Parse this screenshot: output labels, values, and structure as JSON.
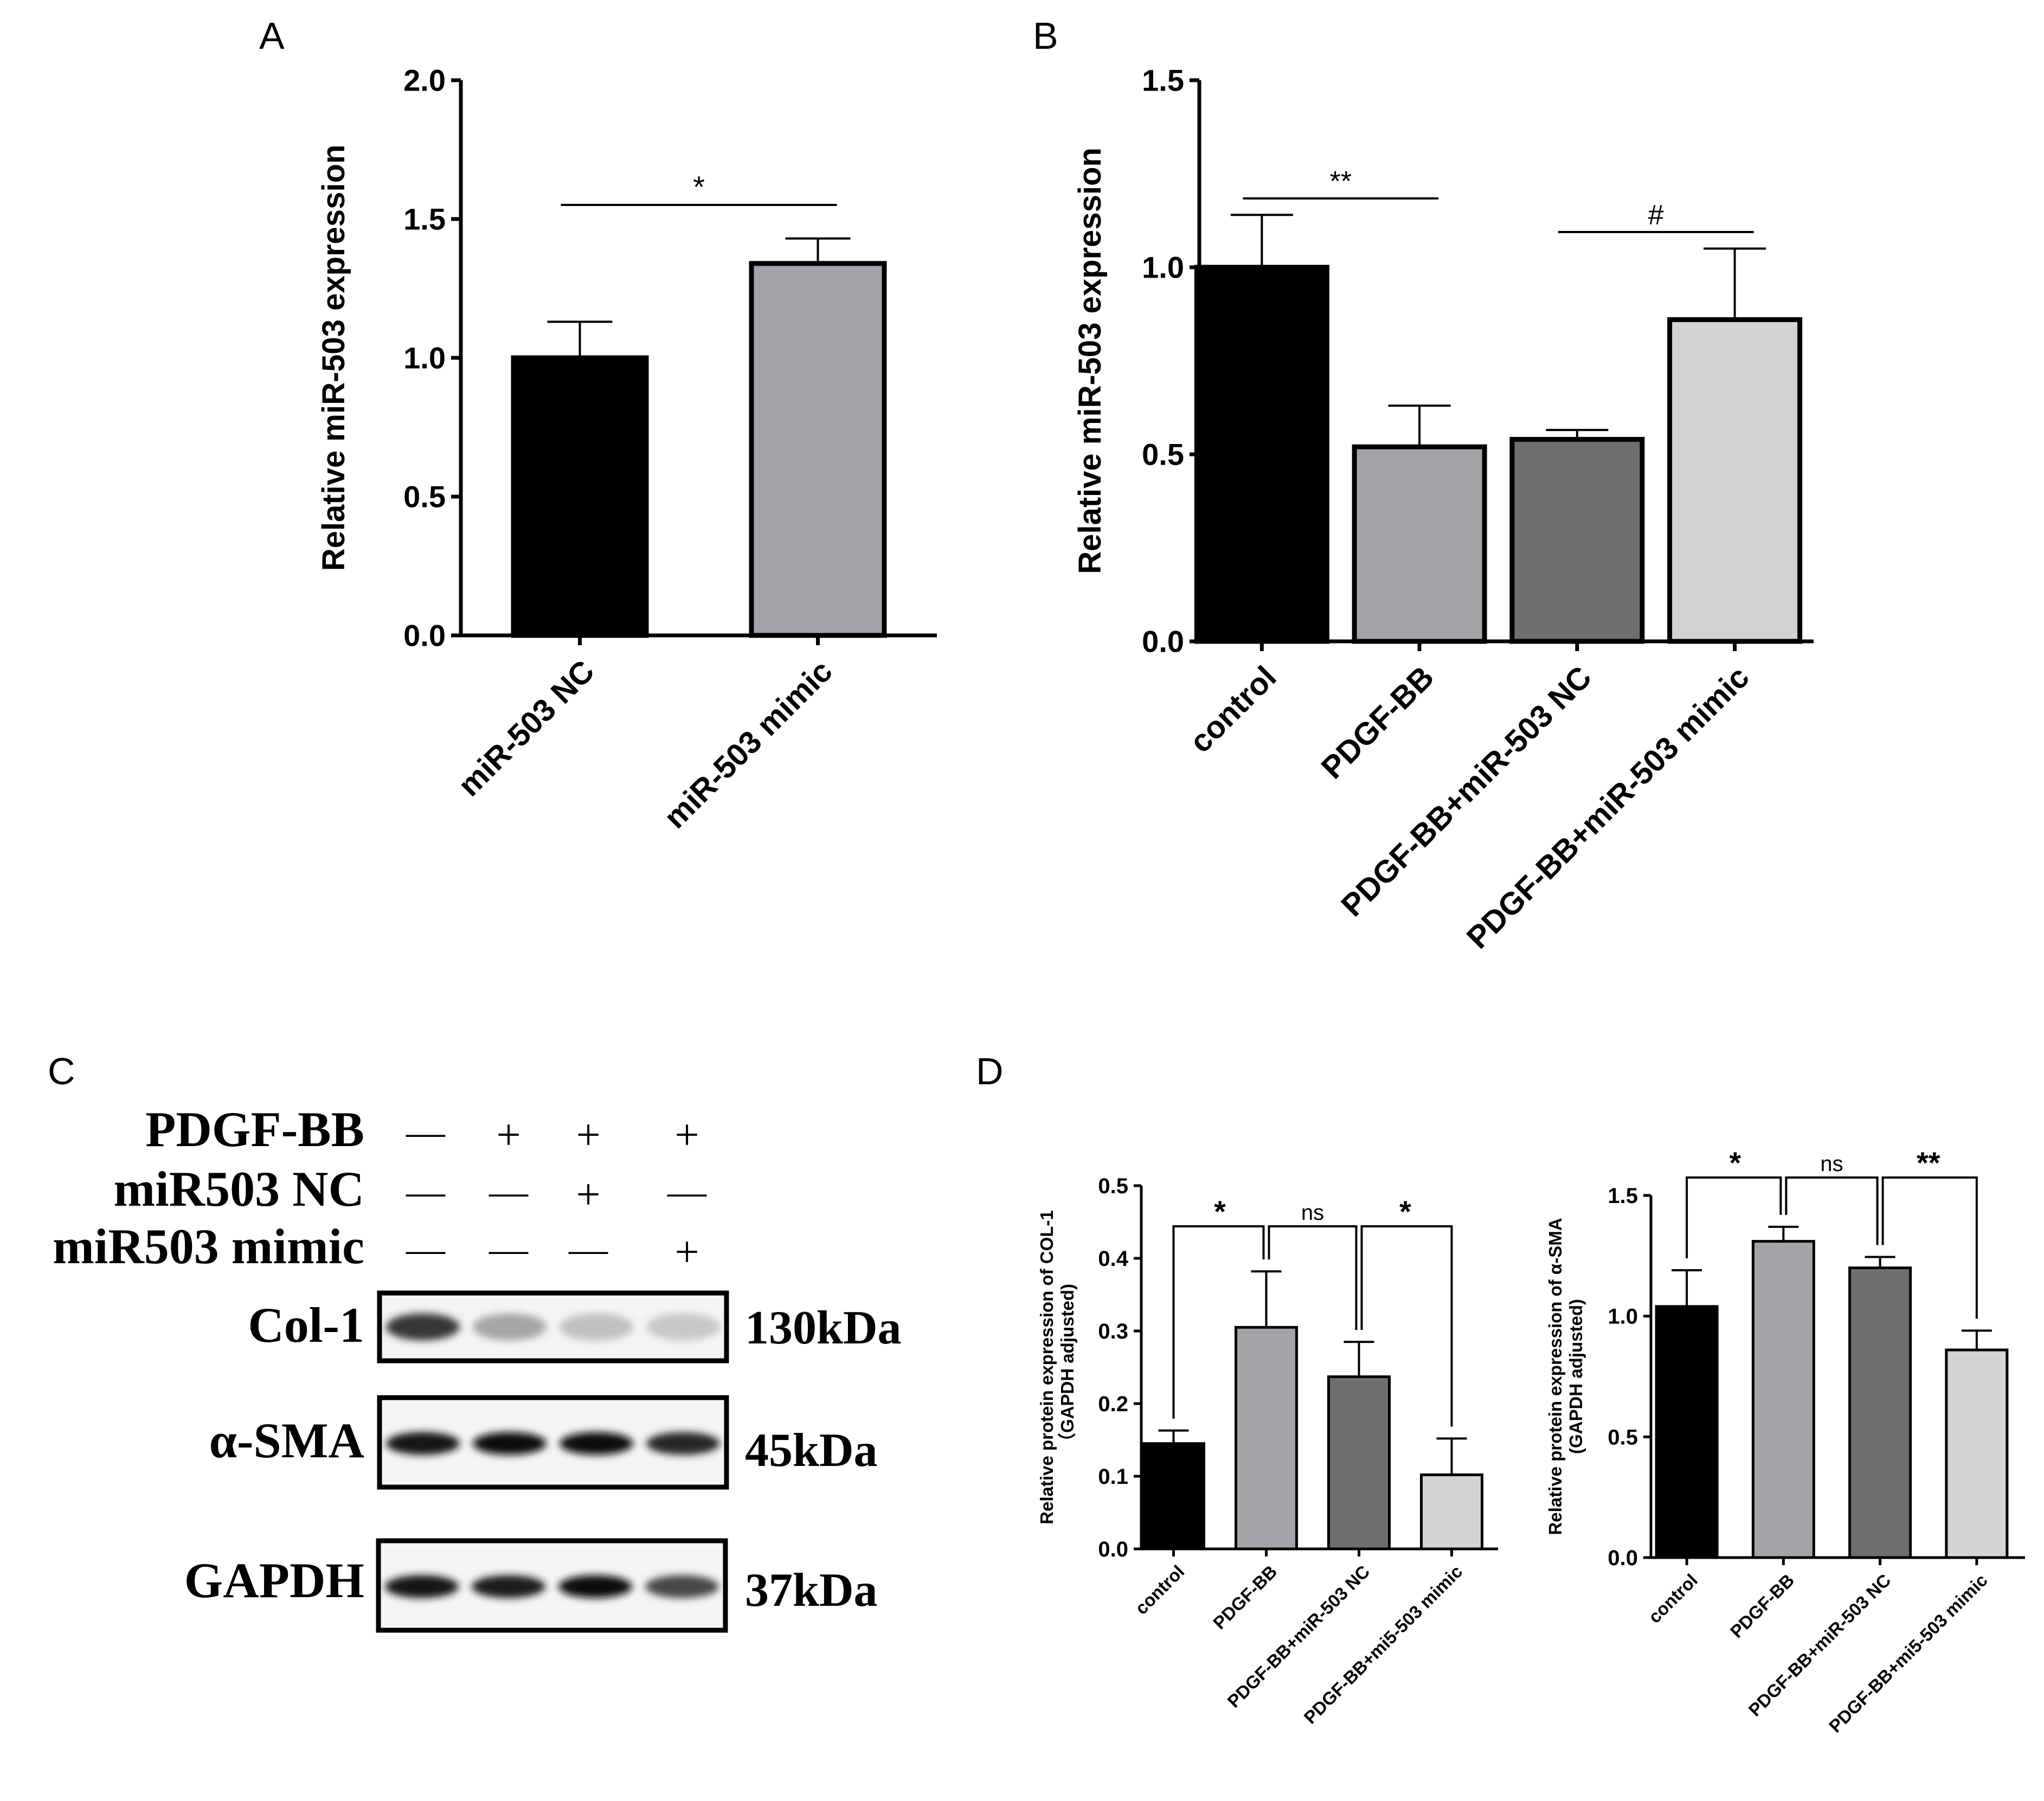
{
  "panels": {
    "A": {
      "letter": "A"
    },
    "B": {
      "letter": "B"
    },
    "C": {
      "letter": "C"
    },
    "D": {
      "letter": "D"
    }
  },
  "western_blot": {
    "treatment_rows": [
      {
        "label": "PDGF-BB",
        "marks": [
          "—",
          "+",
          "+",
          "+"
        ]
      },
      {
        "label": "miR503 NC",
        "marks": [
          "—",
          "—",
          "+",
          "—"
        ]
      },
      {
        "label": "miR503 mimic",
        "marks": [
          "—",
          "—",
          "—",
          "+"
        ]
      }
    ],
    "blots": [
      {
        "protein": "Col-1",
        "size": "130kDa",
        "band_intensity": [
          0.78,
          0.35,
          0.25,
          0.22
        ]
      },
      {
        "protein": "α-SMA",
        "size": "45kDa",
        "band_intensity": [
          0.92,
          0.95,
          0.95,
          0.85
        ]
      },
      {
        "protein": "GAPDH",
        "size": "37kDa",
        "band_intensity": [
          0.92,
          0.88,
          0.95,
          0.72
        ]
      }
    ]
  },
  "chart_data": [
    {
      "panel": "A",
      "type": "bar",
      "categories": [
        "miR-503 NC",
        "miR-503 mimic"
      ],
      "values": [
        1.0,
        1.34
      ],
      "errors": [
        0.13,
        0.09
      ],
      "bar_colors": [
        "#000000",
        "#a3a3a8"
      ],
      "xlabel": "",
      "ylabel": "Relative miR-503 expression",
      "ylim": [
        0,
        2.0
      ],
      "yticks": [
        "0.0",
        "0.5",
        "1.0",
        "1.5",
        "2.0"
      ],
      "significance": [
        {
          "from": 0,
          "to": 1,
          "label": "*"
        }
      ],
      "grid": false
    },
    {
      "panel": "B",
      "type": "bar",
      "categories": [
        "control",
        "PDGF-BB",
        "PDGF-BB+miR-503 NC",
        "PDGF-BB+miR-503 mimic"
      ],
      "values": [
        1.0,
        0.52,
        0.54,
        0.86
      ],
      "errors": [
        0.14,
        0.11,
        0.025,
        0.19
      ],
      "bar_colors": [
        "#000000",
        "#a3a3a8",
        "#6f6f72",
        "#d3d3d3"
      ],
      "xlabel": "",
      "ylabel": "Relative miR-503 expression",
      "ylim": [
        0,
        1.5
      ],
      "yticks": [
        "0.0",
        "0.5",
        "1.0",
        "1.5"
      ],
      "significance": [
        {
          "from": 0,
          "to": 1,
          "label": "**"
        },
        {
          "from": 2,
          "to": 3,
          "label": "#"
        }
      ],
      "grid": false
    },
    {
      "panel": "D-left",
      "type": "bar",
      "categories": [
        "control",
        "PDGF-BB",
        "PDGF-BB+miR-503 NC",
        "PDGF-BB+mi5-503 mimic"
      ],
      "values": [
        0.145,
        0.305,
        0.237,
        0.102
      ],
      "errors": [
        0.018,
        0.077,
        0.048,
        0.05
      ],
      "bar_colors": [
        "#000000",
        "#a3a3a8",
        "#6f6f72",
        "#d3d3d3"
      ],
      "xlabel": "",
      "ylabel": "Relative protein expression of COL-1",
      "ylabel2": "（GAPDH adjusted)",
      "ylim": [
        0,
        0.5
      ],
      "yticks": [
        "0.0",
        "0.1",
        "0.2",
        "0.3",
        "0.4",
        "0.5"
      ],
      "significance": [
        {
          "from": 0,
          "to": 1,
          "label": "*"
        },
        {
          "from": 1,
          "to": 2,
          "label": "ns"
        },
        {
          "from": 2,
          "to": 3,
          "label": "*"
        }
      ],
      "grid": false
    },
    {
      "panel": "D-right",
      "type": "bar",
      "categories": [
        "control",
        "PDGF-BB",
        "PDGF-BB+miR-503 NC",
        "PDGF-BB+mi5-503 mimic"
      ],
      "values": [
        1.04,
        1.31,
        1.2,
        0.86
      ],
      "errors": [
        0.15,
        0.06,
        0.045,
        0.08
      ],
      "bar_colors": [
        "#000000",
        "#a3a3a8",
        "#6f6f72",
        "#d3d3d3"
      ],
      "xlabel": "",
      "ylabel": "Relative protein expression of α-SMA",
      "ylabel2": "(GAPDH adjusted)",
      "ylim": [
        0,
        1.5
      ],
      "yticks": [
        "0.0",
        "0.5",
        "1.0",
        "1.5"
      ],
      "significance": [
        {
          "from": 0,
          "to": 1,
          "label": "*"
        },
        {
          "from": 1,
          "to": 2,
          "label": "ns"
        },
        {
          "from": 2,
          "to": 3,
          "label": "**"
        }
      ],
      "grid": false
    }
  ]
}
